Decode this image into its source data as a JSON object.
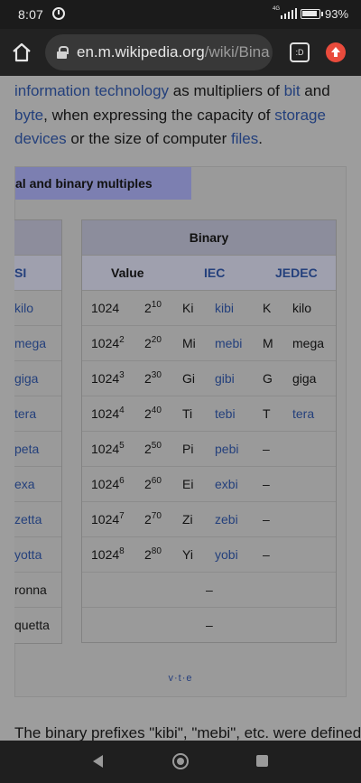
{
  "status_bar": {
    "time": "8:07",
    "network": "4G",
    "battery_percent": "93%"
  },
  "browser": {
    "url_domain": "en.m.wikipedia.org",
    "url_path": "/wiki/Bina",
    "tabs_button_label": ":D"
  },
  "article": {
    "intro_parts": [
      {
        "text": "information technology",
        "link": true
      },
      {
        "text": " as multipliers of ",
        "link": false
      },
      {
        "text": "bit",
        "link": true
      },
      {
        "text": " and ",
        "link": false
      },
      {
        "text": "byte",
        "link": true
      },
      {
        "text": ", when expressing the capacity of ",
        "link": false
      },
      {
        "text": "storage devices",
        "link": true
      },
      {
        "text": " or the size of computer ",
        "link": false
      },
      {
        "text": "files",
        "link": true
      },
      {
        "text": ".",
        "link": false
      }
    ],
    "tail_text": "The binary prefixes \"kibi\", \"mebi\", etc. were defined"
  },
  "navbox": {
    "title": "al and binary multiples",
    "vte": "v·t·e",
    "si_table": {
      "header": "SI",
      "rows": [
        {
          "label": "kilo",
          "link": true
        },
        {
          "label": "mega",
          "link": true
        },
        {
          "label": "giga",
          "link": true
        },
        {
          "label": "tera",
          "link": true
        },
        {
          "label": "peta",
          "link": true
        },
        {
          "label": "exa",
          "link": true
        },
        {
          "label": "zetta",
          "link": true
        },
        {
          "label": "yotta",
          "link": true
        },
        {
          "label": "ronna",
          "link": false
        },
        {
          "label": "quetta",
          "link": false
        }
      ]
    },
    "binary_table": {
      "title": "Binary",
      "headers": {
        "value": "Value",
        "iec": "IEC",
        "jedec": "JEDEC"
      },
      "rows": [
        {
          "dec_base": "1024",
          "dec_exp": "",
          "bin_base": "2",
          "bin_exp": "10",
          "iec_sym": "Ki",
          "iec_name": "kibi",
          "jedec_sym": "K",
          "jedec_name": "kilo",
          "jedec_link": false
        },
        {
          "dec_base": "1024",
          "dec_exp": "2",
          "bin_base": "2",
          "bin_exp": "20",
          "iec_sym": "Mi",
          "iec_name": "mebi",
          "jedec_sym": "M",
          "jedec_name": "mega",
          "jedec_link": false
        },
        {
          "dec_base": "1024",
          "dec_exp": "3",
          "bin_base": "2",
          "bin_exp": "30",
          "iec_sym": "Gi",
          "iec_name": "gibi",
          "jedec_sym": "G",
          "jedec_name": "giga",
          "jedec_link": false
        },
        {
          "dec_base": "1024",
          "dec_exp": "4",
          "bin_base": "2",
          "bin_exp": "40",
          "iec_sym": "Ti",
          "iec_name": "tebi",
          "jedec_sym": "T",
          "jedec_name": "tera",
          "jedec_link": true
        },
        {
          "dec_base": "1024",
          "dec_exp": "5",
          "bin_base": "2",
          "bin_exp": "50",
          "iec_sym": "Pi",
          "iec_name": "pebi",
          "jedec_sym": "–",
          "jedec_name": "",
          "jedec_link": false
        },
        {
          "dec_base": "1024",
          "dec_exp": "6",
          "bin_base": "2",
          "bin_exp": "60",
          "iec_sym": "Ei",
          "iec_name": "exbi",
          "jedec_sym": "–",
          "jedec_name": "",
          "jedec_link": false
        },
        {
          "dec_base": "1024",
          "dec_exp": "7",
          "bin_base": "2",
          "bin_exp": "70",
          "iec_sym": "Zi",
          "iec_name": "zebi",
          "jedec_sym": "–",
          "jedec_name": "",
          "jedec_link": false
        },
        {
          "dec_base": "1024",
          "dec_exp": "8",
          "bin_base": "2",
          "bin_exp": "80",
          "iec_sym": "Yi",
          "iec_name": "yobi",
          "jedec_sym": "–",
          "jedec_name": "",
          "jedec_link": false
        }
      ],
      "empty_rows": [
        "–",
        "–"
      ]
    }
  },
  "colors": {
    "link": "#24407c",
    "navbox_title_bg": "#7c7fb1",
    "header_bg": "#9fa0ae"
  }
}
